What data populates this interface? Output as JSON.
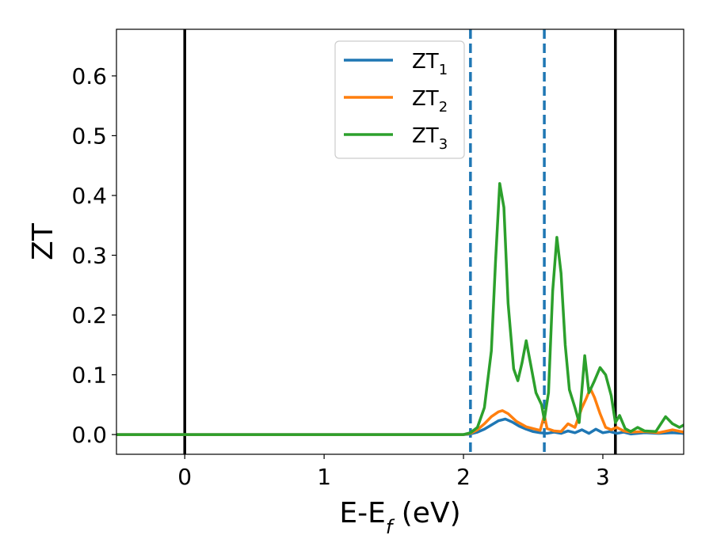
{
  "chart_data": {
    "type": "line",
    "xlabel": "E-E",
    "xlabel_sub": "f",
    "xlabel_unit": " (eV)",
    "ylabel": "ZT",
    "xlim": [
      -0.49,
      3.58
    ],
    "ylim": [
      -0.033,
      0.678
    ],
    "x_ticks": [
      0,
      1,
      2,
      3
    ],
    "x_tick_labels": [
      "0",
      "1",
      "2",
      "3"
    ],
    "y_ticks": [
      0.0,
      0.1,
      0.2,
      0.3,
      0.4,
      0.5,
      0.6
    ],
    "y_tick_labels": [
      "0.0",
      "0.1",
      "0.2",
      "0.3",
      "0.4",
      "0.5",
      "0.6"
    ],
    "grid": false,
    "legend_position": "top-center",
    "vlines_solid": [
      0.0,
      3.09
    ],
    "vlines_dashed": [
      2.05,
      2.58
    ],
    "vline_solid_color": "#000000",
    "vline_dashed_color": "#1f77b4",
    "series": [
      {
        "name": "ZT",
        "sub": "1",
        "color": "#1f77b4",
        "points": [
          [
            -0.49,
            0
          ],
          [
            2.0,
            0
          ],
          [
            2.05,
            0.001
          ],
          [
            2.1,
            0.004
          ],
          [
            2.15,
            0.009
          ],
          [
            2.2,
            0.016
          ],
          [
            2.25,
            0.023
          ],
          [
            2.3,
            0.026
          ],
          [
            2.35,
            0.021
          ],
          [
            2.4,
            0.014
          ],
          [
            2.45,
            0.009
          ],
          [
            2.5,
            0.005
          ],
          [
            2.55,
            0.003
          ],
          [
            2.6,
            0.002
          ],
          [
            2.65,
            0.004
          ],
          [
            2.7,
            0.002
          ],
          [
            2.75,
            0.006
          ],
          [
            2.8,
            0.003
          ],
          [
            2.85,
            0.008
          ],
          [
            2.9,
            0.002
          ],
          [
            2.95,
            0.009
          ],
          [
            3.0,
            0.003
          ],
          [
            3.05,
            0.005
          ],
          [
            3.1,
            0.002
          ],
          [
            3.15,
            0.004
          ],
          [
            3.2,
            0.001
          ],
          [
            3.3,
            0.003
          ],
          [
            3.4,
            0.002
          ],
          [
            3.5,
            0.003
          ],
          [
            3.58,
            0.002
          ]
        ]
      },
      {
        "name": "ZT",
        "sub": "2",
        "color": "#ff7f0e",
        "points": [
          [
            -0.49,
            0
          ],
          [
            2.0,
            0
          ],
          [
            2.05,
            0.002
          ],
          [
            2.1,
            0.008
          ],
          [
            2.15,
            0.018
          ],
          [
            2.2,
            0.03
          ],
          [
            2.25,
            0.038
          ],
          [
            2.28,
            0.04
          ],
          [
            2.32,
            0.035
          ],
          [
            2.38,
            0.022
          ],
          [
            2.45,
            0.013
          ],
          [
            2.5,
            0.01
          ],
          [
            2.55,
            0.007
          ],
          [
            2.58,
            0.032
          ],
          [
            2.6,
            0.01
          ],
          [
            2.65,
            0.006
          ],
          [
            2.7,
            0.005
          ],
          [
            2.75,
            0.018
          ],
          [
            2.8,
            0.012
          ],
          [
            2.85,
            0.045
          ],
          [
            2.88,
            0.06
          ],
          [
            2.91,
            0.077
          ],
          [
            2.94,
            0.062
          ],
          [
            2.98,
            0.035
          ],
          [
            3.02,
            0.012
          ],
          [
            3.06,
            0.008
          ],
          [
            3.1,
            0.012
          ],
          [
            3.15,
            0.006
          ],
          [
            3.2,
            0.004
          ],
          [
            3.3,
            0.005
          ],
          [
            3.4,
            0.003
          ],
          [
            3.5,
            0.008
          ],
          [
            3.58,
            0.004
          ]
        ]
      },
      {
        "name": "ZT",
        "sub": "3",
        "color": "#2ca02c",
        "points": [
          [
            -0.49,
            0
          ],
          [
            2.0,
            0
          ],
          [
            2.05,
            0.003
          ],
          [
            2.1,
            0.012
          ],
          [
            2.15,
            0.045
          ],
          [
            2.2,
            0.14
          ],
          [
            2.23,
            0.29
          ],
          [
            2.26,
            0.42
          ],
          [
            2.29,
            0.38
          ],
          [
            2.32,
            0.22
          ],
          [
            2.36,
            0.11
          ],
          [
            2.39,
            0.09
          ],
          [
            2.42,
            0.12
          ],
          [
            2.45,
            0.157
          ],
          [
            2.48,
            0.12
          ],
          [
            2.52,
            0.07
          ],
          [
            2.56,
            0.05
          ],
          [
            2.58,
            0.025
          ],
          [
            2.61,
            0.07
          ],
          [
            2.64,
            0.24
          ],
          [
            2.67,
            0.33
          ],
          [
            2.7,
            0.27
          ],
          [
            2.73,
            0.15
          ],
          [
            2.76,
            0.075
          ],
          [
            2.8,
            0.045
          ],
          [
            2.83,
            0.02
          ],
          [
            2.87,
            0.132
          ],
          [
            2.9,
            0.07
          ],
          [
            2.94,
            0.09
          ],
          [
            2.98,
            0.112
          ],
          [
            3.02,
            0.1
          ],
          [
            3.06,
            0.065
          ],
          [
            3.09,
            0.02
          ],
          [
            3.12,
            0.032
          ],
          [
            3.16,
            0.01
          ],
          [
            3.2,
            0.005
          ],
          [
            3.25,
            0.012
          ],
          [
            3.3,
            0.006
          ],
          [
            3.38,
            0.005
          ],
          [
            3.45,
            0.03
          ],
          [
            3.5,
            0.018
          ],
          [
            3.55,
            0.012
          ],
          [
            3.58,
            0.016
          ]
        ]
      }
    ]
  }
}
